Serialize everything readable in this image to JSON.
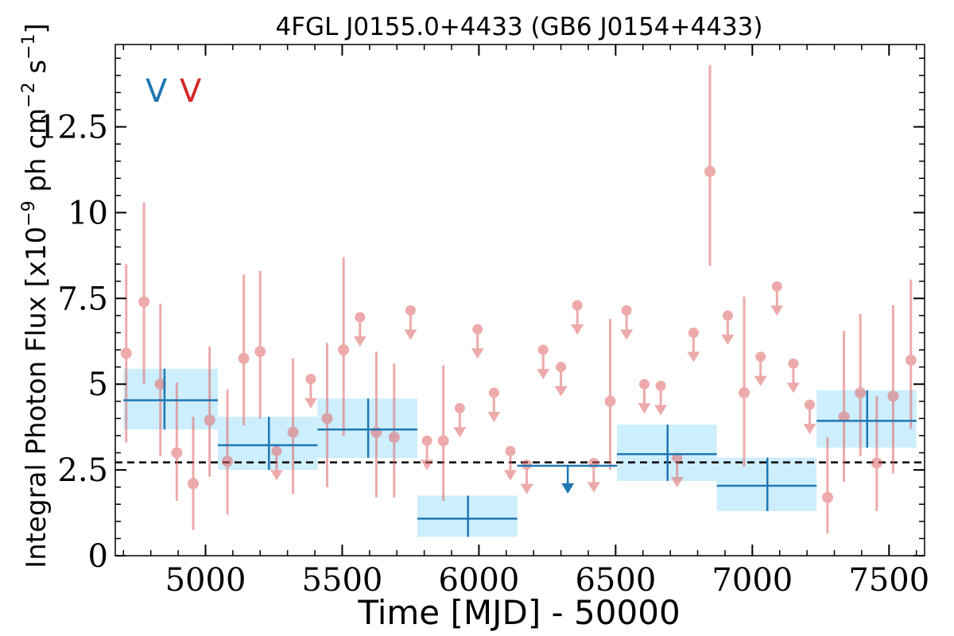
{
  "chart_data": {
    "type": "scatter",
    "title": "4FGL J0155.0+4433 (GB6 J0154+4433)",
    "xlabel": "Time [MJD] - 50000",
    "ylabel_main": "Integral Photon Flux [x10",
    "ylabel_exp1": "−9",
    "ylabel_mid": " ph cm",
    "ylabel_exp2": "−2",
    "ylabel_s": " s",
    "ylabel_exp3": "−1",
    "ylabel_end": "]",
    "xlim": [
      4670,
      7630
    ],
    "ylim": [
      0,
      14.9
    ],
    "xticks": [
      5000,
      5500,
      6000,
      6500,
      7000,
      7500
    ],
    "yticks": [
      0,
      2.5,
      5,
      7.5,
      10,
      12.5
    ],
    "ytick_labels": [
      "0",
      "2.5",
      "5",
      "7.5",
      "10",
      "12.5"
    ],
    "x_minor_step": 100,
    "y_minor_step": 0.5,
    "reference_level": 2.72,
    "legend": {
      "markers": [
        {
          "text": "V",
          "color": "#1f77b4"
        },
        {
          "text": "V",
          "color": "#d62728"
        }
      ],
      "placement": "top-left"
    },
    "colors": {
      "long_bins": "#1f77b4",
      "long_bin_band": "#cdeefc",
      "short_bins": "#e06666",
      "reference": "#000000"
    },
    "long_bins": [
      {
        "x": 4850,
        "x_lo": 4700,
        "x_hi": 5045,
        "y": 4.53,
        "y_lo": 3.68,
        "y_hi": 5.45,
        "upper_limit": false
      },
      {
        "x": 5232,
        "x_lo": 5045,
        "x_hi": 5410,
        "y": 3.22,
        "y_lo": 2.5,
        "y_hi": 4.05,
        "upper_limit": false
      },
      {
        "x": 5595,
        "x_lo": 5410,
        "x_hi": 5775,
        "y": 3.68,
        "y_lo": 2.85,
        "y_hi": 4.58,
        "upper_limit": false
      },
      {
        "x": 5960,
        "x_lo": 5775,
        "x_hi": 6140,
        "y": 1.08,
        "y_lo": 0.55,
        "y_hi": 1.75,
        "upper_limit": false
      },
      {
        "x": 6325,
        "x_lo": 6140,
        "x_hi": 6505,
        "y": 2.62,
        "upper_limit": true
      },
      {
        "x": 6690,
        "x_lo": 6505,
        "x_hi": 6870,
        "y": 2.96,
        "y_lo": 2.18,
        "y_hi": 3.82,
        "upper_limit": false
      },
      {
        "x": 7055,
        "x_lo": 6870,
        "x_hi": 7235,
        "y": 2.04,
        "y_lo": 1.3,
        "y_hi": 2.86,
        "upper_limit": false
      },
      {
        "x": 7420,
        "x_lo": 7235,
        "x_hi": 7600,
        "y": 3.93,
        "y_lo": 3.15,
        "y_hi": 4.82,
        "upper_limit": false
      }
    ],
    "short_bins": [
      {
        "x": 4710,
        "y": 5.9,
        "y_lo": 3.3,
        "y_hi": 8.5,
        "upper_limit": false
      },
      {
        "x": 4775,
        "y": 7.4,
        "y_lo": 5.0,
        "y_hi": 10.3,
        "upper_limit": false
      },
      {
        "x": 4835,
        "y": 5.0,
        "y_lo": 2.9,
        "y_hi": 7.35,
        "upper_limit": false
      },
      {
        "x": 4895,
        "y": 3.0,
        "y_lo": 1.6,
        "y_hi": 5.05,
        "upper_limit": false
      },
      {
        "x": 4955,
        "y": 2.1,
        "y_lo": 0.75,
        "y_hi": 4.05,
        "upper_limit": false
      },
      {
        "x": 5015,
        "y": 3.95,
        "y_lo": 2.3,
        "y_hi": 6.1,
        "upper_limit": false
      },
      {
        "x": 5080,
        "y": 2.75,
        "y_lo": 1.2,
        "y_hi": 4.85,
        "upper_limit": false
      },
      {
        "x": 5140,
        "y": 5.75,
        "y_lo": 3.8,
        "y_hi": 8.2,
        "upper_limit": false
      },
      {
        "x": 5200,
        "y": 5.95,
        "y_lo": 4.0,
        "y_hi": 8.3,
        "upper_limit": false
      },
      {
        "x": 5260,
        "y": 3.05,
        "upper_limit": true
      },
      {
        "x": 5320,
        "y": 3.6,
        "y_lo": 1.8,
        "y_hi": 5.75,
        "upper_limit": false
      },
      {
        "x": 5385,
        "y": 5.15,
        "upper_limit": true
      },
      {
        "x": 5445,
        "y": 4.0,
        "y_lo": 2.0,
        "y_hi": 6.2,
        "upper_limit": false
      },
      {
        "x": 5505,
        "y": 6.0,
        "y_lo": 3.5,
        "y_hi": 8.7,
        "upper_limit": false
      },
      {
        "x": 5565,
        "y": 6.95,
        "upper_limit": true
      },
      {
        "x": 5625,
        "y": 3.6,
        "y_lo": 1.7,
        "y_hi": 5.95,
        "upper_limit": false
      },
      {
        "x": 5690,
        "y": 3.45,
        "y_lo": 1.7,
        "y_hi": 5.6,
        "upper_limit": false
      },
      {
        "x": 5750,
        "y": 7.15,
        "upper_limit": true
      },
      {
        "x": 5810,
        "y": 3.35,
        "upper_limit": true
      },
      {
        "x": 5870,
        "y": 3.35,
        "y_lo": 1.6,
        "y_hi": 5.55,
        "upper_limit": false
      },
      {
        "x": 5930,
        "y": 4.3,
        "upper_limit": true
      },
      {
        "x": 5995,
        "y": 6.6,
        "upper_limit": true
      },
      {
        "x": 6055,
        "y": 4.75,
        "upper_limit": true
      },
      {
        "x": 6115,
        "y": 3.05,
        "upper_limit": true
      },
      {
        "x": 6175,
        "y": 2.65,
        "upper_limit": true
      },
      {
        "x": 6235,
        "y": 6.0,
        "upper_limit": true
      },
      {
        "x": 6300,
        "y": 5.5,
        "upper_limit": true
      },
      {
        "x": 6360,
        "y": 7.3,
        "upper_limit": true
      },
      {
        "x": 6420,
        "y": 2.7,
        "upper_limit": true
      },
      {
        "x": 6480,
        "y": 4.5,
        "y_lo": 2.5,
        "y_hi": 6.9,
        "upper_limit": false
      },
      {
        "x": 6540,
        "y": 7.15,
        "upper_limit": true
      },
      {
        "x": 6605,
        "y": 5.0,
        "upper_limit": true
      },
      {
        "x": 6665,
        "y": 4.95,
        "upper_limit": true
      },
      {
        "x": 6725,
        "y": 2.85,
        "upper_limit": true
      },
      {
        "x": 6785,
        "y": 6.5,
        "upper_limit": true
      },
      {
        "x": 6845,
        "y": 11.2,
        "y_lo": 8.45,
        "y_hi": 14.3,
        "upper_limit": false
      },
      {
        "x": 6910,
        "y": 7.0,
        "upper_limit": true
      },
      {
        "x": 6970,
        "y": 4.75,
        "y_lo": 2.6,
        "y_hi": 7.55,
        "upper_limit": false
      },
      {
        "x": 7030,
        "y": 5.8,
        "upper_limit": true
      },
      {
        "x": 7090,
        "y": 7.85,
        "upper_limit": true
      },
      {
        "x": 7150,
        "y": 5.6,
        "upper_limit": true
      },
      {
        "x": 7210,
        "y": 4.4,
        "upper_limit": true
      },
      {
        "x": 7275,
        "y": 1.7,
        "y_lo": 0.65,
        "y_hi": 3.45,
        "upper_limit": false
      },
      {
        "x": 7335,
        "y": 4.05,
        "y_lo": 2.15,
        "y_hi": 6.55,
        "upper_limit": false
      },
      {
        "x": 7395,
        "y": 4.75,
        "y_lo": 2.9,
        "y_hi": 7.05,
        "upper_limit": false
      },
      {
        "x": 7455,
        "y": 2.7,
        "y_lo": 1.3,
        "y_hi": 4.65,
        "upper_limit": false
      },
      {
        "x": 7515,
        "y": 4.65,
        "y_lo": 2.4,
        "y_hi": 7.3,
        "upper_limit": false
      },
      {
        "x": 7580,
        "y": 5.7,
        "y_lo": 3.7,
        "y_hi": 8.05,
        "upper_limit": false
      }
    ]
  }
}
